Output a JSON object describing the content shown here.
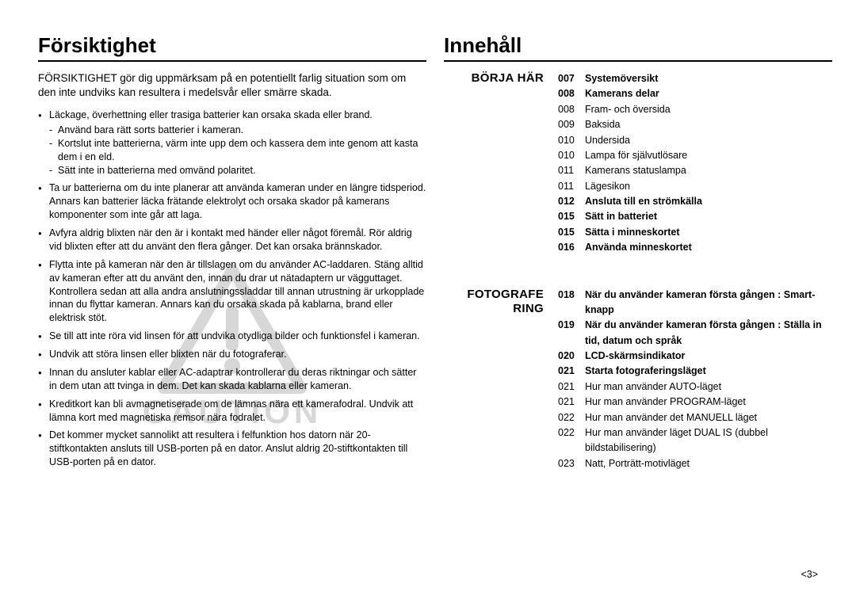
{
  "left": {
    "title": "Försiktighet",
    "intro": "FÖRSIKTIGHET gör dig uppmärksam på en potentiellt farlig situation som om den inte undviks kan resultera i medelsvår eller smärre skada.",
    "bullets": [
      {
        "text": "Läckage, överhettning eller trasiga batterier kan orsaka skada eller brand.",
        "sub": [
          "Använd bara rätt sorts batterier i kameran.",
          "Kortslut inte batterierna, värm inte upp dem och kassera dem inte genom att kasta dem i en eld.",
          "Sätt inte in batterierna med omvänd polaritet."
        ]
      },
      {
        "text": "Ta ur batterierna om du inte planerar att använda kameran under en längre tidsperiod. Annars kan batterier läcka frätande elektrolyt och orsaka skador på kamerans komponenter som inte går att laga."
      },
      {
        "text": "Avfyra aldrig blixten när den är i kontakt med händer eller något föremål. Rör aldrig vid blixten efter att du använt den flera gånger. Det kan orsaka brännskador."
      },
      {
        "text": "Flytta inte på kameran när den är tillslagen om du använder AC-laddaren. Stäng alltid av kameran efter att du använt den, innan du drar ut nätadaptern ur vägguttaget. Kontrollera sedan att alla andra anslutningssladdar till annan utrustning är urkopplade innan du flyttar kameran. Annars kan du orsaka skada på kablarna, brand eller elektrisk stöt."
      },
      {
        "text": "Se till att inte röra vid linsen för att undvika otydliga bilder och funktionsfel i kameran."
      },
      {
        "text": "Undvik att störa linsen eller blixten när du fotograferar."
      },
      {
        "text": "Innan du ansluter kablar eller AC-adaptrar kontrollerar du deras riktningar och sätter in dem utan att tvinga in dem. Det kan skada kablarna eller kameran."
      },
      {
        "text": "Kreditkort kan bli avmagnetiserade om de lämnas nära ett kamerafodral. Undvik att lämna kort med magnetiska remsor nära fodralet."
      },
      {
        "text": "Det kommer mycket sannolikt att resultera i felfunktion hos datorn när 20-stiftkontakten ansluts till USB-porten på en dator. Anslut aldrig 20-stiftkontakten till USB-porten på en dator."
      }
    ]
  },
  "right": {
    "title": "Innehåll",
    "sections": [
      {
        "label": "BÖRJA HÄR",
        "items": [
          {
            "num": "007",
            "text": "Systemöversikt",
            "bold": true
          },
          {
            "num": "008",
            "text": "Kamerans delar",
            "bold": true
          },
          {
            "num": "008",
            "text": "Fram- och översida"
          },
          {
            "num": "009",
            "text": "Baksida"
          },
          {
            "num": "010",
            "text": "Undersida"
          },
          {
            "num": "010",
            "text": "Lampa för självutlösare"
          },
          {
            "num": "011",
            "text": "Kamerans statuslampa"
          },
          {
            "num": "011",
            "text": "Lägesikon"
          },
          {
            "num": "012",
            "text": "Ansluta till en strömkälla",
            "bold": true
          },
          {
            "num": "015",
            "text": "Sätt in batteriet",
            "bold": true
          },
          {
            "num": "015",
            "text": "Sätta i minneskortet",
            "bold": true
          },
          {
            "num": "016",
            "text": "Använda minneskortet",
            "bold": true
          }
        ]
      },
      {
        "label": "FOTOGRAFE RING",
        "items": [
          {
            "num": "018",
            "text": "När du använder kameran första gången : Smart-knapp",
            "bold": true
          },
          {
            "num": "019",
            "text": "När du använder kameran första gången : Ställa in tid, datum och språk",
            "bold": true
          },
          {
            "num": "020",
            "text": "LCD-skärmsindikator",
            "bold": true
          },
          {
            "num": "021",
            "text": "Starta fotograferingsläget",
            "bold": true
          },
          {
            "num": "021",
            "text": "Hur man använder AUTO-läget"
          },
          {
            "num": "021",
            "text": "Hur man använder PROGRAM-läget"
          },
          {
            "num": "022",
            "text": "Hur man använder det MANUELL läget"
          },
          {
            "num": "022",
            "text": "Hur man använder läget DUAL IS (dubbel bildstabilisering)"
          },
          {
            "num": "023",
            "text": "Natt, Porträtt-motivläget"
          }
        ]
      }
    ]
  },
  "watermark": "CAUTION",
  "pagenum": "<3>"
}
